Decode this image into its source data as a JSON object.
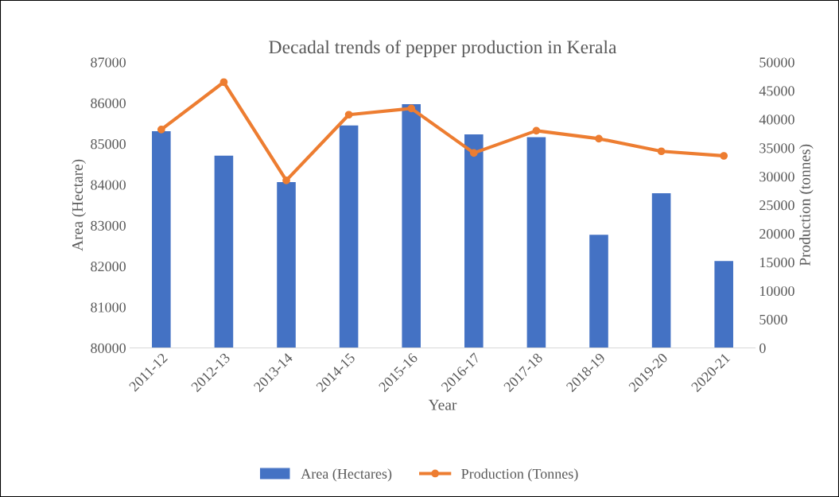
{
  "chart_data": {
    "type": "bar",
    "title": "Decadal trends of pepper production in Kerala",
    "xlabel": "Year",
    "ylabel": "Area (Hectare)",
    "y2label": "Production (tonnes)",
    "categories": [
      "2011-12",
      "2012-13",
      "2013-14",
      "2014-15",
      "2015-16",
      "2016-17",
      "2017-18",
      "2018-19",
      "2019-20",
      "2020-21"
    ],
    "series": [
      {
        "name": "Area (Hectares)",
        "color": "#4472c4",
        "values": [
          85310,
          84710,
          84060,
          85450,
          85970,
          85230,
          85160,
          82770,
          83790,
          82130
        ]
      },
      {
        "name": "Production (Tonnes)",
        "type": "line",
        "axis": "y2",
        "color": "#ed7d31",
        "marker": "circle",
        "values": [
          38200,
          46500,
          29300,
          40800,
          41900,
          34100,
          38000,
          36600,
          34400,
          33600
        ]
      }
    ],
    "ylim": [
      80000,
      87000
    ],
    "yticks": [
      80000,
      81000,
      82000,
      83000,
      84000,
      85000,
      86000,
      87000
    ],
    "y2lim": [
      0,
      50000
    ],
    "y2ticks": [
      0,
      5000,
      10000,
      15000,
      20000,
      25000,
      30000,
      35000,
      40000,
      45000,
      50000
    ],
    "grid": false,
    "legend": "bottom"
  }
}
